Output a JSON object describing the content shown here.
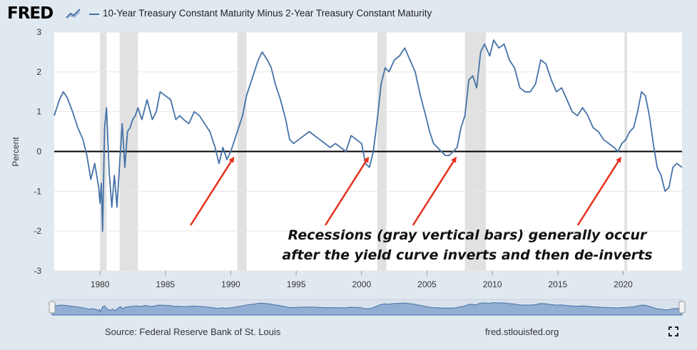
{
  "header": {
    "logo": "FRED",
    "series_label": "10-Year Treasury Constant Maturity Minus 2-Year Treasury Constant Maturity"
  },
  "footer": {
    "source": "Source: Federal Reserve Bank of St. Louis",
    "url": "fred.stlouisfed.org"
  },
  "annotation": {
    "line1": "Recessions (gray vertical bars) generally occur",
    "line2": "after the yield curve inverts and then de-inverts"
  },
  "colors": {
    "series": "#4572a7",
    "recession": "#e1e1e1",
    "arrow": "#e8301e",
    "zero_line": "#000000",
    "navigator_fill": "#92aed3"
  },
  "icons": {
    "expand": "expand-icon",
    "logo_graph": "graph-icon"
  },
  "chart_data": {
    "type": "line",
    "title": "10-Year Treasury Constant Maturity Minus 2-Year Treasury Constant Maturity",
    "ylabel": "Percent",
    "xlabel": "",
    "ylim": [
      -3,
      3
    ],
    "xlim": [
      1976.5,
      2024.5
    ],
    "yticks": [
      -3,
      -2,
      -1,
      0,
      1,
      2,
      3
    ],
    "xticks": [
      1980,
      1985,
      1990,
      1995,
      2000,
      2005,
      2010,
      2015,
      2020
    ],
    "grid": "horizontal",
    "reference_line": 0,
    "recessions": [
      [
        1980.0,
        1980.5
      ],
      [
        1981.5,
        1982.9
      ],
      [
        1990.5,
        1991.2
      ],
      [
        2001.2,
        2001.9
      ],
      [
        2007.9,
        2009.5
      ],
      [
        2020.1,
        2020.3
      ]
    ],
    "arrow_targets": [
      1990.2,
      2000.5,
      2007.2,
      2019.8
    ],
    "series": [
      {
        "name": "10-Year Treasury Constant Maturity Minus 2-Year Treasury Constant Maturity",
        "x": [
          1976.5,
          1976.9,
          1977.2,
          1977.5,
          1977.9,
          1978.3,
          1978.7,
          1979.0,
          1979.3,
          1979.6,
          1979.9,
          1980.0,
          1980.1,
          1980.2,
          1980.35,
          1980.5,
          1980.7,
          1980.9,
          1981.1,
          1981.3,
          1981.5,
          1981.7,
          1981.9,
          1982.1,
          1982.3,
          1982.5,
          1982.7,
          1982.9,
          1983.2,
          1983.6,
          1984.0,
          1984.3,
          1984.6,
          1985.0,
          1985.4,
          1985.8,
          1986.1,
          1986.4,
          1986.8,
          1987.2,
          1987.6,
          1988.0,
          1988.4,
          1988.8,
          1989.1,
          1989.4,
          1989.7,
          1990.0,
          1990.3,
          1990.6,
          1990.9,
          1991.2,
          1991.5,
          1991.8,
          1992.1,
          1992.4,
          1992.8,
          1993.1,
          1993.4,
          1993.8,
          1994.2,
          1994.5,
          1994.8,
          1995.2,
          1995.6,
          1996.0,
          1996.4,
          1996.8,
          1997.2,
          1997.6,
          1998.0,
          1998.4,
          1998.8,
          1999.2,
          1999.6,
          2000.0,
          2000.3,
          2000.6,
          2000.9,
          2001.2,
          2001.5,
          2001.8,
          2002.1,
          2002.5,
          2002.9,
          2003.3,
          2003.7,
          2004.1,
          2004.5,
          2004.9,
          2005.2,
          2005.5,
          2005.8,
          2006.1,
          2006.4,
          2006.7,
          2007.0,
          2007.3,
          2007.6,
          2007.9,
          2008.2,
          2008.5,
          2008.8,
          2009.1,
          2009.4,
          2009.8,
          2010.1,
          2010.5,
          2010.9,
          2011.3,
          2011.7,
          2012.1,
          2012.5,
          2012.9,
          2013.3,
          2013.7,
          2014.1,
          2014.5,
          2014.9,
          2015.3,
          2015.7,
          2016.1,
          2016.5,
          2016.9,
          2017.3,
          2017.7,
          2018.1,
          2018.5,
          2018.9,
          2019.3,
          2019.6,
          2019.9,
          2020.2,
          2020.5,
          2020.8,
          2021.1,
          2021.4,
          2021.7,
          2022.0,
          2022.3,
          2022.6,
          2022.9,
          2023.2,
          2023.5,
          2023.8,
          2024.1,
          2024.5
        ],
        "values": [
          0.9,
          1.3,
          1.5,
          1.35,
          1.0,
          0.6,
          0.3,
          -0.1,
          -0.7,
          -0.3,
          -0.9,
          -1.3,
          -0.8,
          -2.0,
          0.6,
          1.1,
          -0.5,
          -1.4,
          -0.6,
          -1.4,
          -0.3,
          0.7,
          -0.4,
          0.5,
          0.6,
          0.8,
          0.9,
          1.1,
          0.8,
          1.3,
          0.8,
          1.0,
          1.5,
          1.4,
          1.3,
          0.8,
          0.9,
          0.8,
          0.7,
          1.0,
          0.9,
          0.7,
          0.5,
          0.1,
          -0.3,
          0.1,
          -0.2,
          0.0,
          0.3,
          0.6,
          0.9,
          1.4,
          1.7,
          2.0,
          2.3,
          2.5,
          2.3,
          2.1,
          1.7,
          1.3,
          0.8,
          0.3,
          0.2,
          0.3,
          0.4,
          0.5,
          0.4,
          0.3,
          0.2,
          0.1,
          0.2,
          0.1,
          0.0,
          0.4,
          0.3,
          0.2,
          -0.3,
          -0.4,
          0.0,
          0.8,
          1.7,
          2.1,
          2.0,
          2.3,
          2.4,
          2.6,
          2.3,
          2.0,
          1.4,
          0.9,
          0.5,
          0.2,
          0.1,
          0.0,
          -0.1,
          -0.1,
          0.0,
          0.1,
          0.6,
          0.9,
          1.8,
          1.9,
          1.6,
          2.5,
          2.7,
          2.4,
          2.8,
          2.6,
          2.7,
          2.3,
          2.1,
          1.6,
          1.5,
          1.5,
          1.7,
          2.3,
          2.2,
          1.8,
          1.5,
          1.6,
          1.3,
          1.0,
          0.9,
          1.1,
          0.9,
          0.6,
          0.5,
          0.3,
          0.2,
          0.1,
          0.0,
          0.2,
          0.3,
          0.5,
          0.6,
          1.0,
          1.5,
          1.4,
          0.9,
          0.2,
          -0.4,
          -0.6,
          -1.0,
          -0.9,
          -0.4,
          -0.3,
          -0.4
        ]
      }
    ]
  }
}
